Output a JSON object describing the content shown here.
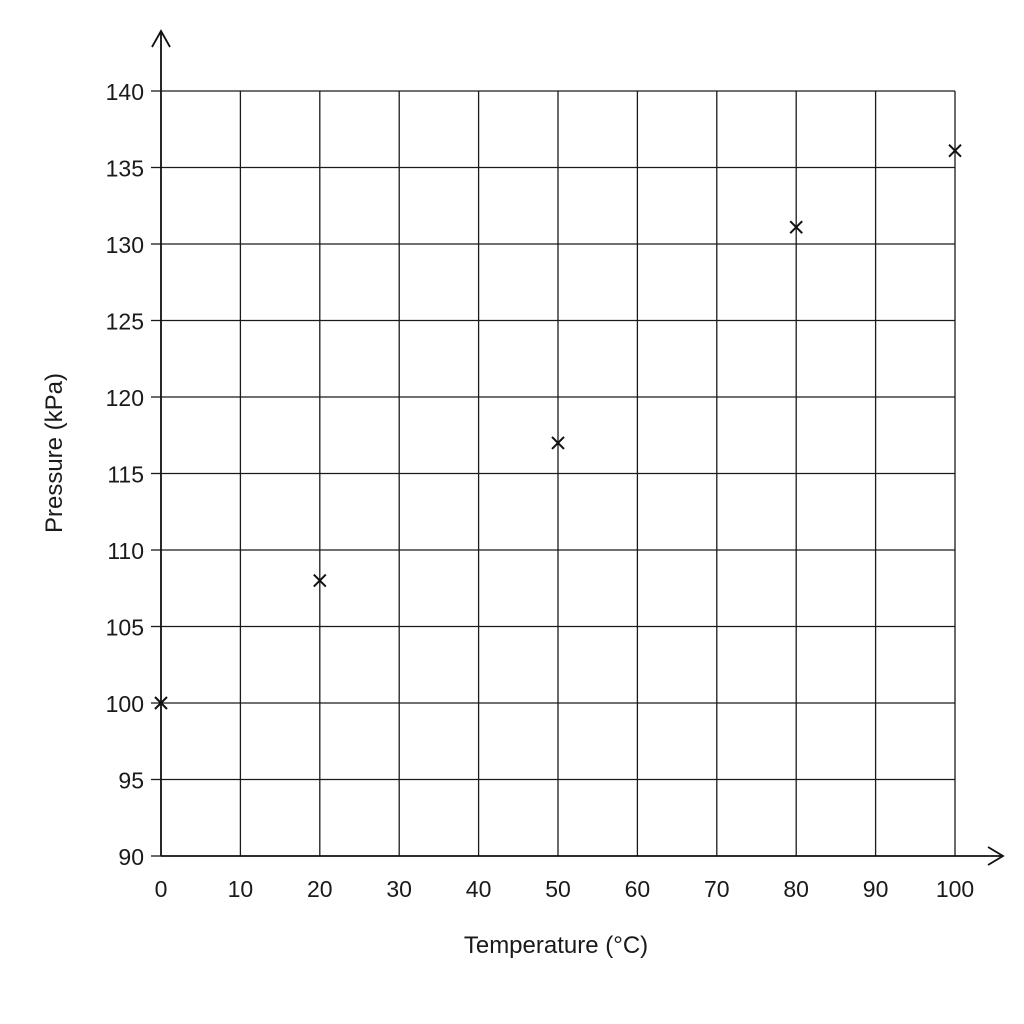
{
  "chart_data": {
    "type": "scatter",
    "title": "",
    "xlabel": "Temperature (°C)",
    "ylabel": "Pressure (kPa)",
    "xlim": [
      0,
      100
    ],
    "ylim": [
      90,
      140
    ],
    "grid": true,
    "marker": "cross",
    "xticks": [
      "0",
      "10",
      "20",
      "30",
      "40",
      "50",
      "60",
      "70",
      "80",
      "90",
      "100"
    ],
    "yticks": [
      "90",
      "95",
      "100",
      "105",
      "110",
      "115",
      "120",
      "125",
      "130",
      "135",
      "140"
    ],
    "series": [
      {
        "x": [
          0,
          20,
          50,
          80,
          100
        ],
        "y": [
          100,
          108,
          117,
          131.1,
          136.1
        ]
      }
    ]
  }
}
